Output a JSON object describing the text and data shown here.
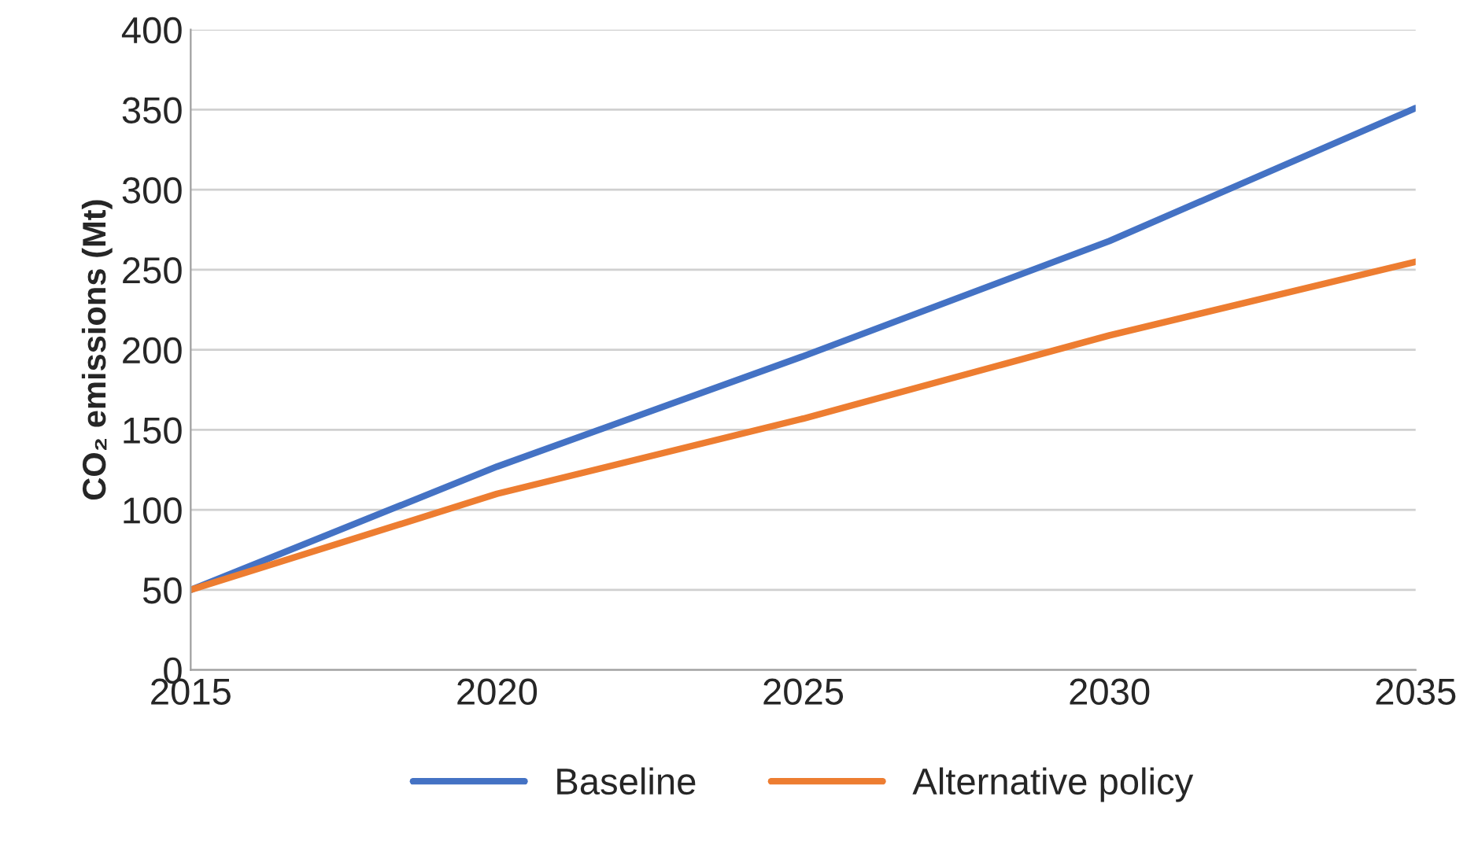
{
  "chart_data": {
    "type": "line",
    "ylabel": "CO₂ emissions (Mt)",
    "x": [
      2015,
      2020,
      2025,
      2030,
      2035
    ],
    "series": [
      {
        "name": "Baseline",
        "color": "#4472c4",
        "values": [
          50,
          127,
          196,
          268,
          351
        ]
      },
      {
        "name": "Alternative policy",
        "color": "#ed7d31",
        "values": [
          50,
          110,
          157,
          209,
          255
        ]
      }
    ],
    "xlim": [
      2015,
      2035
    ],
    "xticks": [
      2015,
      2020,
      2025,
      2030,
      2035
    ],
    "ylim": [
      0,
      400
    ],
    "yticks": [
      0,
      50,
      100,
      150,
      200,
      250,
      300,
      350,
      400
    ],
    "grid": "y",
    "legend": "bottom",
    "marker": "none",
    "line_style": "solid"
  }
}
